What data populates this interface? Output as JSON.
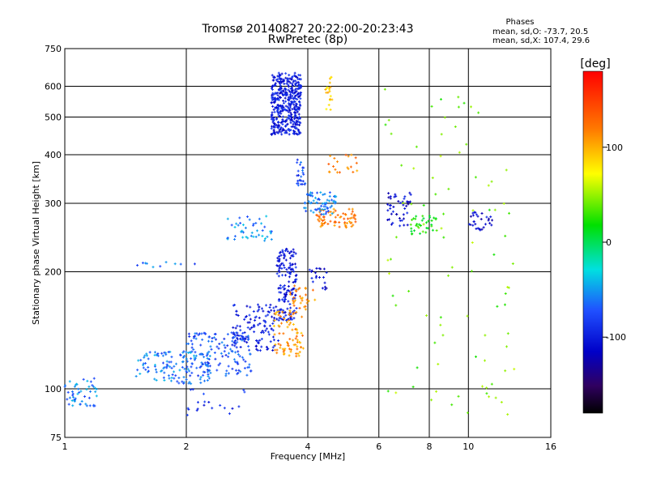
{
  "chart_data": {
    "type": "scatter",
    "title": "Tromsø 20140827 20:22:00-20:23:43",
    "subtitle": "RwPretec (8p)",
    "xlabel": "Frequency [MHz]",
    "ylabel": "Stationary phase Virtual Height [km]",
    "x_scale": "log",
    "y_scale": "log",
    "xlim": [
      1,
      16
    ],
    "ylim": [
      75,
      750
    ],
    "x_ticks": [
      1,
      2,
      4,
      6,
      8,
      10,
      16
    ],
    "x_tick_labels": [
      "1",
      "2",
      "4",
      "6",
      "8",
      "10",
      "16"
    ],
    "y_ticks": [
      75,
      100,
      200,
      300,
      400,
      500,
      600,
      750
    ],
    "y_tick_labels": [
      "75",
      "100",
      "200",
      "300",
      "400",
      "500",
      "600",
      "750"
    ],
    "grid": true,
    "stats": {
      "heading": "Phases",
      "line_o": "mean, sd,O: -73.7, 20.5",
      "line_x": "mean, sd,X: 107.4, 29.6"
    },
    "colorbar": {
      "label": "[deg]",
      "min": -180,
      "max": 180,
      "ticks": [
        100,
        0,
        -100
      ],
      "tick_labels": [
        "100",
        "0",
        "-100"
      ]
    },
    "clusters": [
      {
        "x": [
          3.25,
          3.85
        ],
        "y": [
          450,
          650
        ],
        "phase": -100,
        "n": 420
      },
      {
        "x": [
          3.35,
          3.75
        ],
        "y": [
          150,
          230
        ],
        "phase": -100,
        "n": 160
      },
      {
        "x": [
          2.6,
          3.4
        ],
        "y": [
          125,
          165
        ],
        "phase": -100,
        "n": 120
      },
      {
        "x": [
          2.0,
          2.9
        ],
        "y": [
          108,
          140
        ],
        "phase": -75,
        "n": 140
      },
      {
        "x": [
          1.5,
          2.3
        ],
        "y": [
          103,
          125
        ],
        "phase": -60,
        "n": 130
      },
      {
        "x": [
          3.3,
          3.9
        ],
        "y": [
          120,
          160
        ],
        "phase": 110,
        "n": 80
      },
      {
        "x": [
          3.6,
          4.2
        ],
        "y": [
          160,
          185
        ],
        "phase": 115,
        "n": 30
      },
      {
        "x": [
          4.2,
          5.3
        ],
        "y": [
          260,
          290
        ],
        "phase": 120,
        "n": 70
      },
      {
        "x": [
          3.9,
          4.7
        ],
        "y": [
          280,
          320
        ],
        "phase": -60,
        "n": 70
      },
      {
        "x": [
          2.5,
          3.3
        ],
        "y": [
          240,
          280
        ],
        "phase": -55,
        "n": 45
      },
      {
        "x": [
          3.75,
          3.95
        ],
        "y": [
          330,
          390
        ],
        "phase": -75,
        "n": 25
      },
      {
        "x": [
          4.5,
          5.3
        ],
        "y": [
          360,
          400
        ],
        "phase": 120,
        "n": 20
      },
      {
        "x": [
          4.4,
          4.6
        ],
        "y": [
          520,
          640
        ],
        "phase": 90,
        "n": 20
      },
      {
        "x": [
          1.0,
          1.2
        ],
        "y": [
          90,
          108
        ],
        "phase": -60,
        "n": 50
      },
      {
        "x": [
          6.3,
          7.2
        ],
        "y": [
          260,
          320
        ],
        "phase": -110,
        "n": 45
      },
      {
        "x": [
          7.2,
          8.5
        ],
        "y": [
          250,
          280
        ],
        "phase": 20,
        "n": 35
      },
      {
        "x": [
          10.0,
          11.5
        ],
        "y": [
          255,
          285
        ],
        "phase": -110,
        "n": 30
      },
      {
        "x": [
          6.2,
          13.0
        ],
        "y": [
          85,
          650
        ],
        "phase": 40,
        "n": 90
      },
      {
        "x": [
          1.5,
          2.2
        ],
        "y": [
          205,
          212
        ],
        "phase": -65,
        "n": 10
      },
      {
        "x": [
          2.0,
          2.8
        ],
        "y": [
          85,
          100
        ],
        "phase": -90,
        "n": 20
      },
      {
        "x": [
          4.0,
          4.5
        ],
        "y": [
          180,
          205
        ],
        "phase": -110,
        "n": 20
      }
    ]
  }
}
